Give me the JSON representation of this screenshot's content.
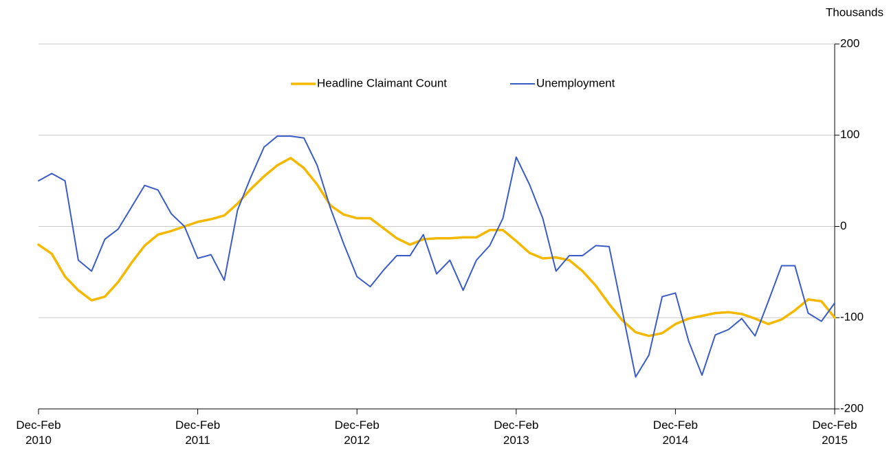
{
  "chart_data": {
    "type": "line",
    "y_unit": "Thousands",
    "categories": [
      "Dec-Feb\n2010",
      null,
      null,
      null,
      null,
      null,
      null,
      null,
      null,
      null,
      null,
      null,
      "Dec-Feb\n2011",
      null,
      null,
      null,
      null,
      null,
      null,
      null,
      null,
      null,
      null,
      null,
      "Dec-Feb\n2012",
      null,
      null,
      null,
      null,
      null,
      null,
      null,
      null,
      null,
      null,
      null,
      "Dec-Feb\n2013",
      null,
      null,
      null,
      null,
      null,
      null,
      null,
      null,
      null,
      null,
      null,
      "Dec-Feb\n2014",
      null,
      null,
      null,
      null,
      null,
      null,
      null,
      null,
      null,
      null,
      null,
      "Dec-Feb\n2015"
    ],
    "series": [
      {
        "name": "Headline Claimant Count",
        "color": "#f5b800",
        "values": [
          -20,
          -30,
          -55,
          -70,
          -81,
          -77,
          -61,
          -40,
          -21,
          -9,
          -5,
          0,
          5,
          8,
          12,
          25,
          41,
          55,
          67,
          75,
          64,
          46,
          23,
          13,
          9,
          9,
          -2,
          -13,
          -20,
          -14,
          -13,
          -13,
          -12,
          -12,
          -4,
          -4,
          -16,
          -29,
          -35,
          -34,
          -37,
          -49,
          -65,
          -85,
          -103,
          -116,
          -120,
          -117,
          -107,
          -101,
          -98,
          -95,
          -94,
          -96,
          -101,
          -107,
          -102,
          -92,
          -80,
          -82,
          -100
        ]
      },
      {
        "name": "Unemployment",
        "color": "#3a5bc7",
        "values": [
          50,
          58,
          50,
          -37,
          -49,
          -14,
          -3,
          21,
          45,
          40,
          14,
          0,
          -35,
          -31,
          -59,
          18,
          54,
          87,
          99,
          99,
          97,
          67,
          20,
          -19,
          -55,
          -66,
          -48,
          -32,
          -32,
          -9,
          -52,
          -37,
          -70,
          -37,
          -21,
          9,
          76,
          46,
          9,
          -49,
          -32,
          -32,
          -21,
          -22,
          -93,
          -165,
          -141,
          -77,
          -73,
          -126,
          -163,
          -119,
          -113,
          -101,
          -120,
          -82,
          -43,
          -43,
          -95,
          -104,
          -84
        ]
      }
    ],
    "ylim": [
      -200,
      200
    ],
    "yticks": [
      -200,
      -100,
      0,
      100,
      200
    ],
    "grid": true,
    "y_axis_side": "right",
    "legend": "top"
  }
}
